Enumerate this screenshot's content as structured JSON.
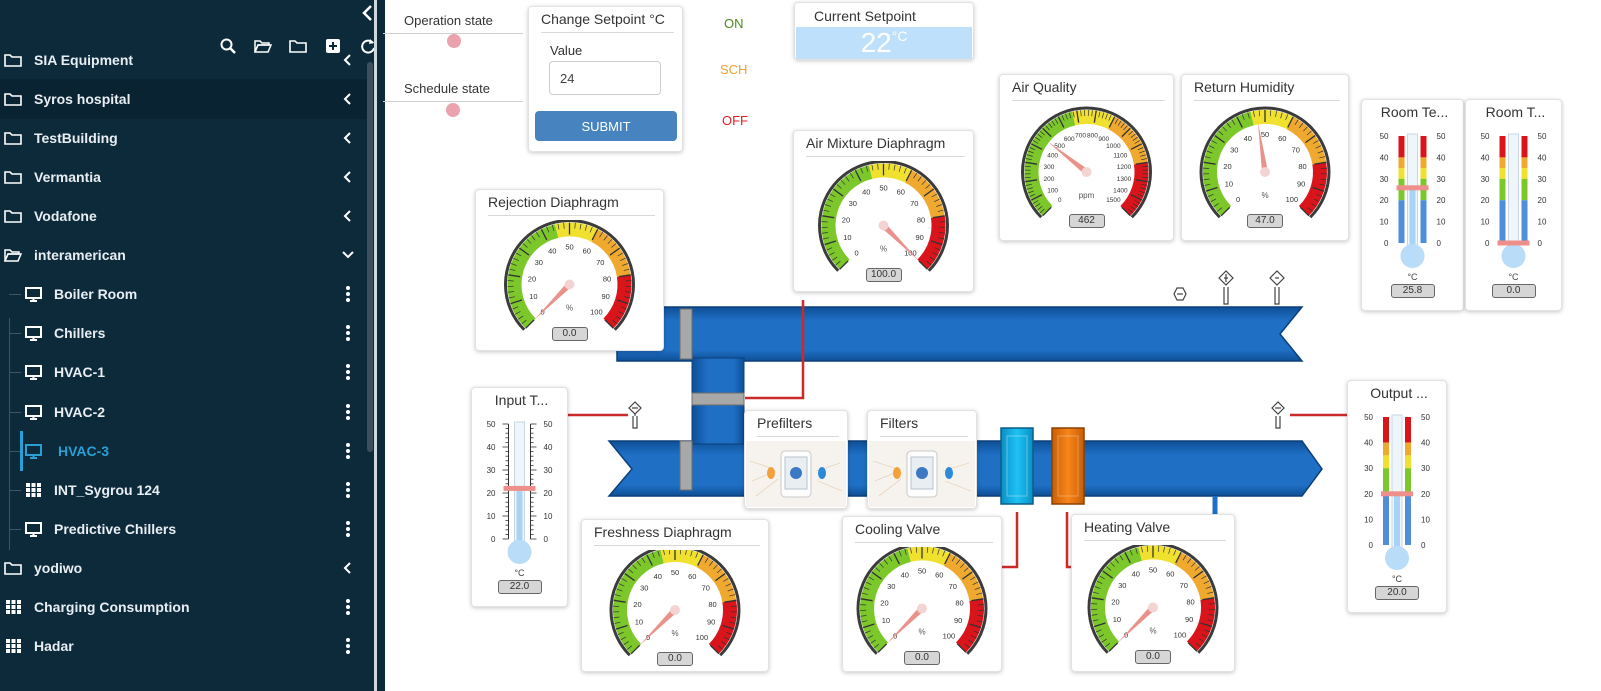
{
  "sidebar": {
    "tree": [
      {
        "label": "SIA Equipment",
        "icon": "folder-icon",
        "action": "chevron-left-icon"
      },
      {
        "label": "Syros hospital",
        "icon": "folder-icon",
        "action": "chevron-left-icon"
      },
      {
        "label": "TestBuilding",
        "icon": "folder-icon",
        "action": "chevron-left-icon"
      },
      {
        "label": "Vermantia",
        "icon": "folder-icon",
        "action": "chevron-left-icon"
      },
      {
        "label": "Vodafone",
        "icon": "folder-icon",
        "action": "chevron-left-icon"
      },
      {
        "label": "interamerican",
        "icon": "folder-open-icon",
        "action": "chevron-down-icon"
      },
      {
        "label": "Boiler Room",
        "icon": "monitor-icon",
        "action": "kebab-menu-icon"
      },
      {
        "label": "Chillers",
        "icon": "monitor-icon",
        "action": "kebab-menu-icon"
      },
      {
        "label": "HVAC-1",
        "icon": "monitor-icon",
        "action": "kebab-menu-icon"
      },
      {
        "label": "HVAC-2",
        "icon": "monitor-icon",
        "action": "kebab-menu-icon"
      },
      {
        "label": "HVAC-3",
        "icon": "monitor-icon",
        "action": "kebab-menu-icon"
      },
      {
        "label": "INT_Sygrou 124",
        "icon": "grid-icon",
        "action": "kebab-menu-icon"
      },
      {
        "label": "Predictive Chillers",
        "icon": "monitor-icon",
        "action": "kebab-menu-icon"
      },
      {
        "label": "yodiwo",
        "icon": "folder-icon",
        "action": "chevron-left-icon"
      },
      {
        "label": "Charging Consumption",
        "icon": "grid-icon",
        "action": "kebab-menu-icon"
      },
      {
        "label": "Hadar",
        "icon": "grid-icon",
        "action": "kebab-menu-icon"
      }
    ],
    "toolbar_icons": [
      "search-icon",
      "folder-open-icon",
      "folder-icon",
      "add-icon",
      "refresh-icon"
    ],
    "active_color": "#2a9fd6"
  },
  "controls": {
    "operation_state": "Operation state",
    "schedule_state": "Schedule state",
    "change_setpoint_title": "Change Setpoint °C",
    "value_label": "Value",
    "value": "24",
    "submit": "SUBMIT",
    "state_on": "ON",
    "state_sch": "SCH",
    "state_off": "OFF",
    "current_setpoint_title": "Current Setpoint",
    "current_setpoint_value": "22",
    "current_setpoint_unit": "°C"
  },
  "gauges": {
    "air_quality": {
      "title": "Air Quality",
      "value": "462",
      "unit": "ppm",
      "min": 0,
      "max": 1500,
      "ticks": [
        "0",
        "100",
        "200",
        "300",
        "400",
        "500",
        "600",
        "700",
        "800",
        "900",
        "1000",
        "1100",
        "1200",
        "1300",
        "1400",
        "1500"
      ]
    },
    "return_humidity": {
      "title": "Return Humidity",
      "value": "47.0",
      "unit": "%",
      "min": 0,
      "max": 100,
      "ticks": [
        "0",
        "10",
        "20",
        "30",
        "40",
        "50",
        "60",
        "70",
        "80",
        "90",
        "100"
      ]
    },
    "air_mixture": {
      "title": "Air Mixture Diaphragm",
      "value": "100.0",
      "unit": "%",
      "min": 0,
      "max": 100,
      "ticks": [
        "0",
        "10",
        "20",
        "30",
        "40",
        "50",
        "60",
        "70",
        "80",
        "90",
        "100"
      ]
    },
    "rejection": {
      "title": "Rejection Diaphragm",
      "value": "0.0",
      "unit": "%",
      "min": 0,
      "max": 100,
      "ticks": [
        "0",
        "10",
        "20",
        "30",
        "40",
        "50",
        "60",
        "70",
        "80",
        "90",
        "100"
      ]
    },
    "freshness": {
      "title": "Freshness Diaphragm",
      "value": "0.0",
      "unit": "%",
      "min": 0,
      "max": 100,
      "ticks": [
        "0",
        "10",
        "20",
        "30",
        "40",
        "50",
        "60",
        "70",
        "80",
        "90",
        "100"
      ]
    },
    "cooling": {
      "title": "Cooling Valve",
      "value": "0.0",
      "unit": "%",
      "min": 0,
      "max": 100,
      "ticks": [
        "0",
        "10",
        "20",
        "30",
        "40",
        "50",
        "60",
        "70",
        "80",
        "90",
        "100"
      ]
    },
    "heating": {
      "title": "Heating Valve",
      "value": "0.0",
      "unit": "%",
      "min": 0,
      "max": 100,
      "ticks": [
        "0",
        "10",
        "20",
        "30",
        "40",
        "50",
        "60",
        "70",
        "80",
        "90",
        "100"
      ]
    }
  },
  "thermometers": {
    "room_temp_1": {
      "title": "Room Te...",
      "value": "25.8",
      "unit": "°C",
      "ticks": [
        "50",
        "40",
        "30",
        "20",
        "10",
        "0"
      ]
    },
    "room_temp_2": {
      "title": "Room T...",
      "value": "0.0",
      "unit": "°C",
      "ticks": [
        "50",
        "40",
        "30",
        "20",
        "10",
        "0"
      ]
    },
    "input_temp": {
      "title": "Input T...",
      "value": "22.0",
      "unit": "°C",
      "ticks": [
        "50",
        "40",
        "30",
        "20",
        "10",
        "0"
      ]
    },
    "output_temp": {
      "title": "Output ...",
      "value": "20.0",
      "unit": "°C",
      "ticks": [
        "50",
        "40",
        "30",
        "20",
        "10",
        "0"
      ]
    }
  },
  "filters": {
    "prefilters": "Prefilters",
    "filters": "Filters"
  },
  "colors": {
    "duct": "#1f6fc5",
    "duct_dark": "#0e4f96",
    "cooling_coil": "#17b7ef",
    "heating_coil": "#f57c12",
    "wire": "#cc2a2a",
    "gauge_green": "#7cc72a",
    "gauge_yellow": "#f1e12f",
    "gauge_orange": "#f0a92f",
    "gauge_red": "#d9141a"
  }
}
